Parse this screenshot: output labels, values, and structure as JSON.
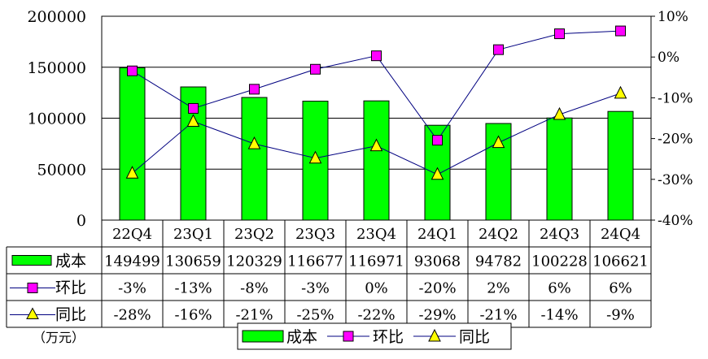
{
  "chart_data": {
    "type": "bar",
    "categories": [
      "22Q4",
      "23Q1",
      "23Q2",
      "23Q3",
      "23Q4",
      "24Q1",
      "24Q2",
      "24Q3",
      "24Q4"
    ],
    "series": [
      {
        "name": "成本",
        "type": "bar",
        "axis": "left",
        "values": [
          149499,
          130659,
          120329,
          116677,
          116971,
          93068,
          94782,
          100228,
          106621
        ],
        "labels": [
          "149499",
          "130659",
          "120329",
          "116677",
          "116971",
          "93068",
          "94782",
          "100228",
          "106621"
        ],
        "color": "#00ff00"
      },
      {
        "name": "环比",
        "type": "line",
        "axis": "right",
        "values": [
          -3.4,
          -12.6,
          -7.9,
          -3.0,
          0.3,
          -20.4,
          1.8,
          5.7,
          6.4
        ],
        "labels": [
          "-3%",
          "-13%",
          "-8%",
          "-3%",
          "0%",
          "-20%",
          "2%",
          "6%",
          "6%"
        ],
        "color": "#ff00ff",
        "line_color": "#000080",
        "marker": "square"
      },
      {
        "name": "同比",
        "type": "line",
        "axis": "right",
        "values": [
          -28.5,
          -15.8,
          -21.3,
          -24.8,
          -21.8,
          -28.8,
          -21.0,
          -14.1,
          -8.9
        ],
        "labels": [
          "-28%",
          "-16%",
          "-21%",
          "-25%",
          "-22%",
          "-29%",
          "-21%",
          "-14%",
          "-9%"
        ],
        "color": "#ffff00",
        "line_color": "#000080",
        "marker": "triangle"
      }
    ],
    "y_left": {
      "min": 0,
      "max": 200000,
      "ticks": [
        "0",
        "50000",
        "100000",
        "150000",
        "200000"
      ]
    },
    "y_right": {
      "min": -40,
      "max": 10,
      "ticks": [
        "-40%",
        "-30%",
        "-20%",
        "-10%",
        "0%",
        "10%"
      ]
    },
    "grid": true,
    "unit_note": "（万元）",
    "legend_position": "bottom",
    "data_table": true
  }
}
